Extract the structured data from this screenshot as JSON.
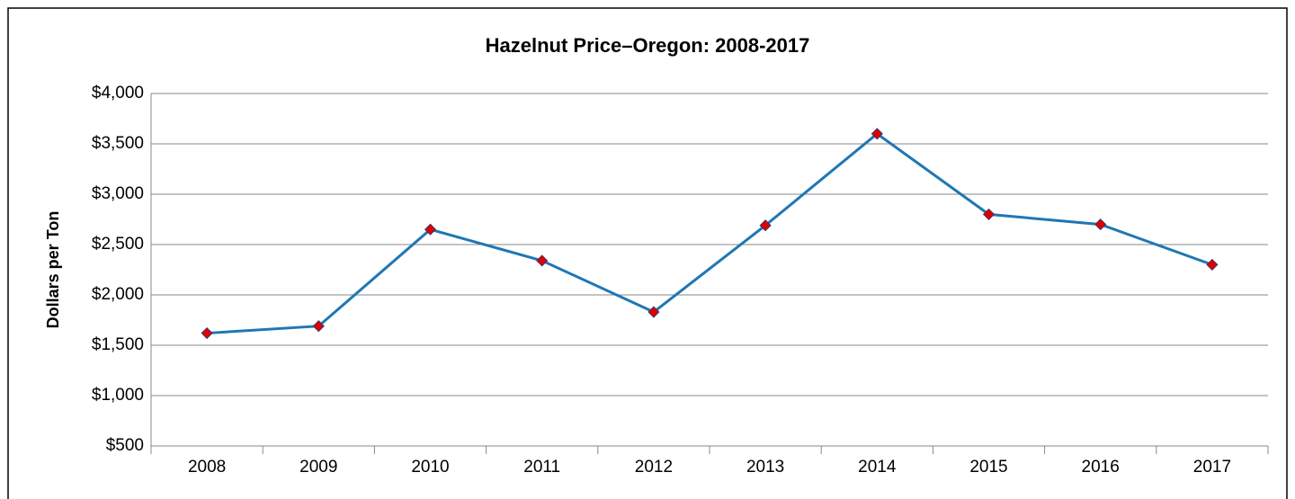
{
  "chart_data": {
    "type": "line",
    "title": "Hazelnut Price–Oregon: 2008-2017",
    "y_label": "Dollars per Ton",
    "categories": [
      "2008",
      "2009",
      "2010",
      "2011",
      "2012",
      "2013",
      "2014",
      "2015",
      "2016",
      "2017"
    ],
    "series": [
      {
        "name": "Price",
        "color": "#1f77b4",
        "marker_color": "#e00000",
        "values": [
          1620,
          1690,
          2650,
          2340,
          1830,
          2690,
          3600,
          2800,
          2700,
          2300
        ]
      }
    ],
    "ylim": [
      500,
      4000
    ],
    "yticks": [
      {
        "value": 500,
        "label": "$500"
      },
      {
        "value": 1000,
        "label": "$1,000"
      },
      {
        "value": 1500,
        "label": "$1,500"
      },
      {
        "value": 2000,
        "label": "$2,000"
      },
      {
        "value": 2500,
        "label": "$2,500"
      },
      {
        "value": 3000,
        "label": "$3,000"
      },
      {
        "value": 3500,
        "label": "$3,500"
      },
      {
        "value": 4000,
        "label": "$4,000"
      }
    ],
    "grid": true
  }
}
